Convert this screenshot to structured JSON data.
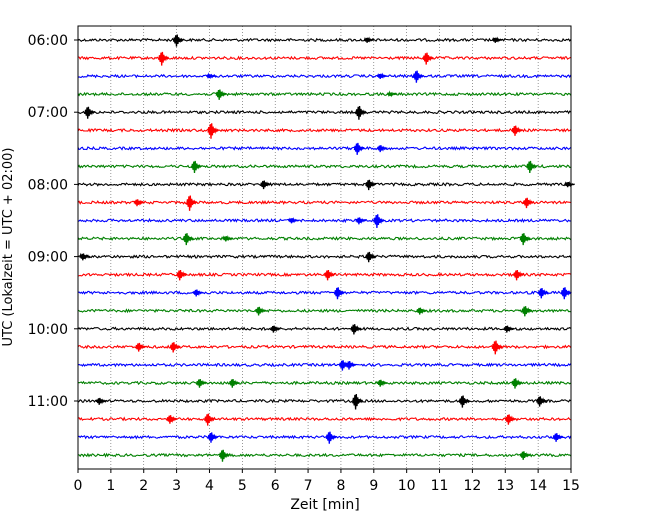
{
  "chart_data": {
    "type": "line",
    "chart_kind": "helicorder",
    "xlabel": "Zeit  [min]",
    "ylabel": "UTC (Lokalzeit = UTC + 02:00)",
    "xlim": [
      0,
      15
    ],
    "x_ticks": [
      0,
      1,
      2,
      3,
      4,
      5,
      6,
      7,
      8,
      9,
      10,
      11,
      12,
      13,
      14,
      15
    ],
    "y_ticks": [
      "06:00",
      "07:00",
      "08:00",
      "09:00",
      "10:00",
      "11:00"
    ],
    "grid": "vertical dotted lines at each minute",
    "row_interval_min": 15,
    "trace_colors": [
      "#000000",
      "#ff0000",
      "#0000ff",
      "#008000"
    ],
    "rows": [
      {
        "start": "06:00",
        "color": "#000000",
        "events": [
          {
            "t": 3.0,
            "a": 7
          },
          {
            "t": 8.8,
            "a": 3
          },
          {
            "t": 12.7,
            "a": 3
          }
        ]
      },
      {
        "start": "06:15",
        "color": "#ff0000",
        "events": [
          {
            "t": 2.55,
            "a": 8
          },
          {
            "t": 10.6,
            "a": 7
          }
        ]
      },
      {
        "start": "06:30",
        "color": "#0000ff",
        "events": [
          {
            "t": 4.0,
            "a": 2
          },
          {
            "t": 9.2,
            "a": 3
          },
          {
            "t": 10.3,
            "a": 7
          }
        ]
      },
      {
        "start": "06:45",
        "color": "#008000",
        "events": [
          {
            "t": 4.3,
            "a": 6
          },
          {
            "t": 9.5,
            "a": 2
          }
        ]
      },
      {
        "start": "07:00",
        "color": "#000000",
        "events": [
          {
            "t": 0.3,
            "a": 7
          },
          {
            "t": 8.55,
            "a": 8
          }
        ]
      },
      {
        "start": "07:15",
        "color": "#ff0000",
        "events": [
          {
            "t": 4.05,
            "a": 9
          },
          {
            "t": 13.3,
            "a": 6
          }
        ]
      },
      {
        "start": "07:30",
        "color": "#0000ff",
        "events": [
          {
            "t": 8.5,
            "a": 7
          },
          {
            "t": 9.2,
            "a": 4
          }
        ]
      },
      {
        "start": "07:45",
        "color": "#008000",
        "events": [
          {
            "t": 3.55,
            "a": 7
          },
          {
            "t": 13.75,
            "a": 7
          }
        ]
      },
      {
        "start": "08:00",
        "color": "#000000",
        "events": [
          {
            "t": 5.65,
            "a": 5
          },
          {
            "t": 8.85,
            "a": 6
          },
          {
            "t": 14.9,
            "a": 3
          }
        ]
      },
      {
        "start": "08:15",
        "color": "#ff0000",
        "events": [
          {
            "t": 1.8,
            "a": 4
          },
          {
            "t": 3.4,
            "a": 9
          },
          {
            "t": 13.65,
            "a": 6
          }
        ]
      },
      {
        "start": "08:30",
        "color": "#0000ff",
        "events": [
          {
            "t": 6.5,
            "a": 3
          },
          {
            "t": 8.55,
            "a": 4
          },
          {
            "t": 9.1,
            "a": 8
          }
        ]
      },
      {
        "start": "08:45",
        "color": "#008000",
        "events": [
          {
            "t": 3.3,
            "a": 7
          },
          {
            "t": 4.5,
            "a": 3
          },
          {
            "t": 13.55,
            "a": 7
          }
        ]
      },
      {
        "start": "09:00",
        "color": "#000000",
        "events": [
          {
            "t": 0.15,
            "a": 4
          },
          {
            "t": 8.85,
            "a": 6
          }
        ]
      },
      {
        "start": "09:15",
        "color": "#ff0000",
        "events": [
          {
            "t": 3.1,
            "a": 6
          },
          {
            "t": 7.6,
            "a": 6
          },
          {
            "t": 13.35,
            "a": 6
          }
        ]
      },
      {
        "start": "09:30",
        "color": "#0000ff",
        "events": [
          {
            "t": 3.6,
            "a": 4
          },
          {
            "t": 7.9,
            "a": 7
          },
          {
            "t": 14.1,
            "a": 6
          },
          {
            "t": 14.8,
            "a": 7
          }
        ]
      },
      {
        "start": "09:45",
        "color": "#008000",
        "events": [
          {
            "t": 5.5,
            "a": 5
          },
          {
            "t": 10.4,
            "a": 4
          },
          {
            "t": 13.6,
            "a": 6
          }
        ]
      },
      {
        "start": "10:00",
        "color": "#000000",
        "events": [
          {
            "t": 5.95,
            "a": 4
          },
          {
            "t": 8.4,
            "a": 6
          },
          {
            "t": 13.05,
            "a": 4
          }
        ]
      },
      {
        "start": "10:15",
        "color": "#ff0000",
        "events": [
          {
            "t": 1.85,
            "a": 5
          },
          {
            "t": 2.9,
            "a": 6
          },
          {
            "t": 12.7,
            "a": 8
          }
        ]
      },
      {
        "start": "10:30",
        "color": "#0000ff",
        "events": [
          {
            "t": 8.05,
            "a": 6
          },
          {
            "t": 8.25,
            "a": 5
          }
        ]
      },
      {
        "start": "10:45",
        "color": "#008000",
        "events": [
          {
            "t": 3.7,
            "a": 5
          },
          {
            "t": 4.7,
            "a": 5
          },
          {
            "t": 9.2,
            "a": 4
          },
          {
            "t": 13.3,
            "a": 6
          }
        ]
      },
      {
        "start": "11:00",
        "color": "#000000",
        "events": [
          {
            "t": 0.65,
            "a": 4
          },
          {
            "t": 8.45,
            "a": 9
          },
          {
            "t": 11.7,
            "a": 7
          },
          {
            "t": 14.05,
            "a": 6
          }
        ]
      },
      {
        "start": "11:15",
        "color": "#ff0000",
        "events": [
          {
            "t": 2.8,
            "a": 5
          },
          {
            "t": 3.95,
            "a": 7
          },
          {
            "t": 13.1,
            "a": 6
          }
        ]
      },
      {
        "start": "11:30",
        "color": "#0000ff",
        "events": [
          {
            "t": 4.05,
            "a": 6
          },
          {
            "t": 7.65,
            "a": 7
          },
          {
            "t": 14.55,
            "a": 5
          }
        ]
      },
      {
        "start": "11:45",
        "color": "#008000",
        "events": [
          {
            "t": 4.4,
            "a": 7
          },
          {
            "t": 13.55,
            "a": 5
          }
        ]
      }
    ]
  }
}
